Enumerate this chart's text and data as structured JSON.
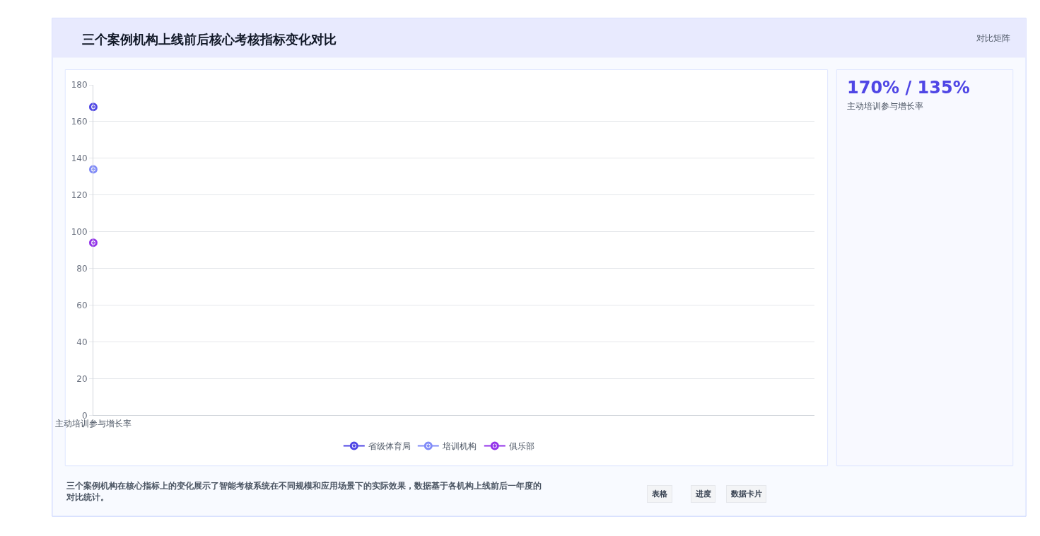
{
  "chart_data": {
    "type": "line",
    "title": "三个案例机构上线前后核心考核指标变化对比",
    "categories": [
      "主动培训参与增长率"
    ],
    "series": [
      {
        "name": "省级体育局",
        "color": "#4f46e5",
        "values": [
          168
        ]
      },
      {
        "name": "培训机构",
        "color": "#818cf8",
        "values": [
          134
        ]
      },
      {
        "name": "俱乐部",
        "color": "#9333ea",
        "values": [
          94
        ]
      }
    ],
    "ylim": [
      0,
      180
    ],
    "yticks": [
      0,
      20,
      40,
      60,
      80,
      100,
      120,
      140,
      160,
      180
    ],
    "grid": "y",
    "legend": "bottom",
    "marker": "circle",
    "annotations": [
      "对比矩阵",
      "170% / 135%",
      "主动培训参与增长率",
      "三个案例机构在核心指标上的变化展示了智能考核系统在不同规模和应用场景下的实际效果，数据基于各机构上线前后一年度的对比统计。",
      "表格",
      "进度",
      "数据卡片"
    ]
  }
}
